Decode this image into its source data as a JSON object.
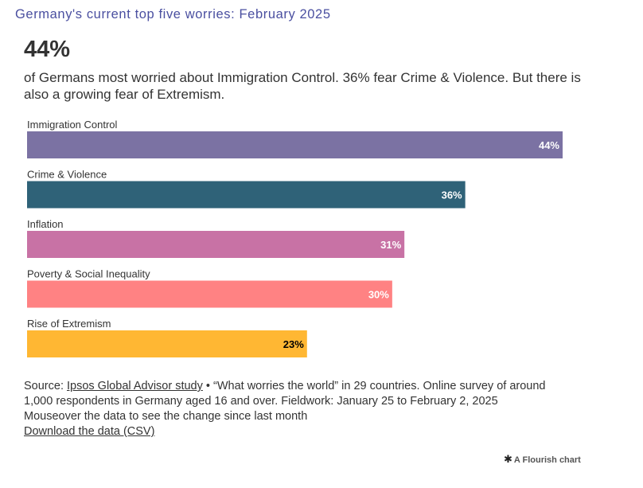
{
  "header": {
    "title": "Germany's current top five worries: February 2025",
    "headline": "44%",
    "subtitle": "of Germans most worried about Immigration Control. 36% fear Crime & Violence. But there is also a growing fear of Extremism."
  },
  "chart_data": {
    "type": "bar",
    "orientation": "horizontal",
    "categories": [
      "Immigration Control",
      "Crime & Violence",
      "Inflation",
      "Poverty & Social Inequality",
      "Rise of Extremism"
    ],
    "values": [
      44,
      36,
      31,
      30,
      23
    ],
    "value_labels": [
      "44%",
      "36%",
      "31%",
      "30%",
      "23%"
    ],
    "colors": [
      "#7b72a3",
      "#2f6278",
      "#c872a5",
      "#ff8283",
      "#ffb733"
    ],
    "label_colors": [
      "#ffffff",
      "#ffffff",
      "#ffffff",
      "#ffffff",
      "#000000"
    ],
    "xlim": [
      0,
      44
    ],
    "grid": false,
    "legend": "none"
  },
  "footer": {
    "source_prefix": "Source: ",
    "source_link": "Ipsos Global Advisor study",
    "source_rest": " • “What worries the world” in 29 countries. Online survey of around",
    "line2": "1,000 respondents in Germany aged 16 and over. Fieldwork: January 25 to February 2, 2025",
    "line3": "Mouseover the data to see the change since last month",
    "download": "Download the data (CSV)"
  },
  "branding": {
    "icon": "flourish-star-icon",
    "text": "A Flourish chart"
  }
}
